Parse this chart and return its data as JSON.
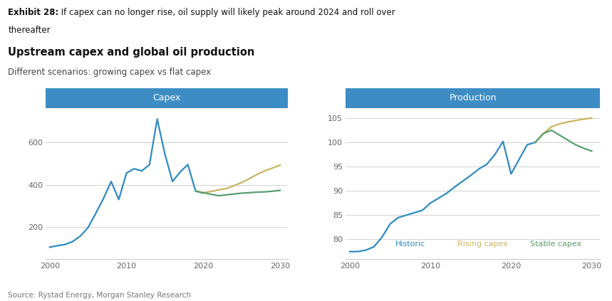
{
  "exhibit_bold": "Exhibit 28:",
  "exhibit_rest": " If capex can no longer rise, oil supply will likely peak around 2024 and roll over\nthereafter",
  "title": "Upstream capex and global oil production",
  "subtitle": "Different scenarios: growing capex vs flat capex",
  "source": "Source: Rystad Energy, Morgan Stanley Research",
  "capex_header": "Capex",
  "production_header": "Production",
  "header_color": "#3d8dc4",
  "historic_color": "#2e8bbf",
  "rising_color": "#c8b560",
  "stable_color": "#5a9e6e",
  "legend_historic": "Historic",
  "legend_rising": "Rising capex",
  "legend_stable": "Stable capex",
  "capex_x": [
    2000,
    2001,
    2002,
    2003,
    2004,
    2005,
    2006,
    2007,
    2008,
    2009,
    2010,
    2011,
    2012,
    2013,
    2014,
    2015,
    2016,
    2017,
    2018,
    2019,
    2020,
    2021,
    2022,
    2023,
    2024,
    2025,
    2026,
    2027,
    2028,
    2029,
    2030
  ],
  "capex_historic": [
    105,
    112,
    118,
    132,
    158,
    198,
    265,
    335,
    415,
    330,
    455,
    475,
    465,
    495,
    710,
    545,
    415,
    460,
    495,
    370,
    360,
    null,
    null,
    null,
    null,
    null,
    null,
    null,
    null,
    null,
    null
  ],
  "capex_rising": [
    null,
    null,
    null,
    null,
    null,
    null,
    null,
    null,
    null,
    null,
    null,
    null,
    null,
    null,
    null,
    null,
    null,
    null,
    null,
    370,
    362,
    368,
    375,
    382,
    395,
    410,
    428,
    448,
    465,
    478,
    492
  ],
  "capex_stable": [
    null,
    null,
    null,
    null,
    null,
    null,
    null,
    null,
    null,
    null,
    null,
    null,
    null,
    null,
    null,
    null,
    null,
    null,
    null,
    370,
    362,
    355,
    348,
    352,
    356,
    360,
    362,
    365,
    366,
    369,
    373
  ],
  "prod_x": [
    2000,
    2001,
    2002,
    2003,
    2004,
    2005,
    2006,
    2007,
    2008,
    2009,
    2010,
    2011,
    2012,
    2013,
    2014,
    2015,
    2016,
    2017,
    2018,
    2019,
    2020,
    2021,
    2022,
    2023,
    2024,
    2025,
    2026,
    2027,
    2028,
    2029,
    2030
  ],
  "prod_historic": [
    77.5,
    77.5,
    77.8,
    78.5,
    80.5,
    83.2,
    84.5,
    85.0,
    85.5,
    86.0,
    87.5,
    88.5,
    89.5,
    90.8,
    92.0,
    93.2,
    94.5,
    95.5,
    97.5,
    100.2,
    93.5,
    96.5,
    99.5,
    100.0,
    null,
    null,
    null,
    null,
    null,
    null,
    null
  ],
  "prod_rising": [
    null,
    null,
    null,
    null,
    null,
    null,
    null,
    null,
    null,
    null,
    null,
    null,
    null,
    null,
    null,
    null,
    null,
    null,
    null,
    null,
    null,
    null,
    null,
    100.0,
    101.8,
    103.2,
    103.8,
    104.2,
    104.5,
    104.8,
    105.0
  ],
  "prod_stable": [
    null,
    null,
    null,
    null,
    null,
    null,
    null,
    null,
    null,
    null,
    null,
    null,
    null,
    null,
    null,
    null,
    null,
    null,
    null,
    null,
    null,
    null,
    null,
    100.0,
    101.8,
    102.5,
    101.5,
    100.5,
    99.5,
    98.8,
    98.2
  ],
  "capex_ylim": [
    50,
    760
  ],
  "capex_yticks": [
    200,
    400,
    600
  ],
  "prod_ylim": [
    76,
    107
  ],
  "prod_yticks": [
    80,
    85,
    90,
    95,
    100,
    105
  ],
  "xlim": [
    1999.5,
    2031
  ],
  "xticks": [
    2000,
    2010,
    2020,
    2030
  ],
  "bg_color": "#ffffff",
  "grid_color": "#cccccc",
  "tick_color": "#666666"
}
